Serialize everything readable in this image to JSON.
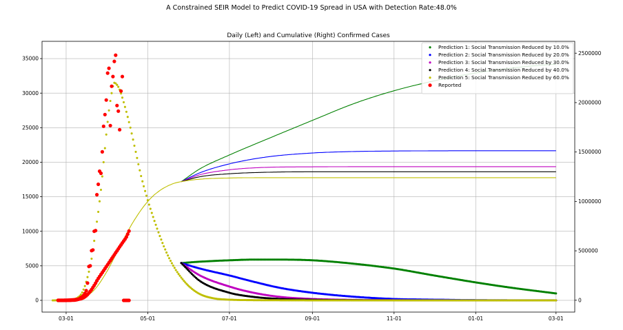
{
  "figure": {
    "suptitle": "A Constrained SEIR Model to Predict COVID-19 Spread in USA with Detection Rate:48.0%"
  },
  "chart_data": {
    "type": "line",
    "title": "Daily (Left) and Cumulative (Right) Confirmed Cases",
    "x_tick_labels": [
      "03-01",
      "05-01",
      "07-01",
      "09-01",
      "11-01",
      "01-01",
      "03-01"
    ],
    "x_tick_days": [
      0,
      61,
      122,
      184,
      245,
      306,
      366
    ],
    "xlim_days": [
      -18,
      380
    ],
    "left_axis": {
      "ylim": [
        -1700,
        37500
      ],
      "ticks": [
        0,
        5000,
        10000,
        15000,
        20000,
        25000,
        30000,
        35000
      ]
    },
    "right_axis": {
      "ylim": [
        -120000,
        2620000
      ],
      "ticks": [
        0,
        500000,
        1000000,
        1500000,
        2000000,
        2500000
      ]
    },
    "grid": true,
    "legend_position": "top-right",
    "legend": [
      {
        "label": "Prediction 1: Social Transmission Reduced by 10.0%",
        "color": "#008000"
      },
      {
        "label": "Prediction 2: Social Transmission Reduced by 20.0%",
        "color": "#0000ff"
      },
      {
        "label": "Prediction 3: Social Transmission Reduced by 30.0%",
        "color": "#bf00bf"
      },
      {
        "label": "Prediction 4: Social Transmission Reduced by 40.0%",
        "color": "#000000"
      },
      {
        "label": "Prediction 5: Social Transmission Reduced by 60.0%",
        "color": "#bfbf00"
      },
      {
        "label": "Reported",
        "color": "#ff0000"
      }
    ],
    "reported_daily": {
      "x_days": [
        -6,
        -5,
        -4,
        -3,
        -2,
        -1,
        0,
        1,
        2,
        3,
        4,
        5,
        6,
        7,
        8,
        9,
        10,
        11,
        12,
        13,
        14,
        15,
        16,
        17,
        18,
        19,
        20,
        21,
        22,
        23,
        24,
        25,
        26,
        27,
        28,
        29,
        30,
        31,
        32,
        33,
        34,
        35,
        36,
        37,
        38,
        39,
        40,
        41,
        42,
        43,
        44,
        45,
        46,
        47
      ],
      "y": [
        0,
        0,
        0,
        0,
        0,
        0,
        0,
        5,
        5,
        10,
        20,
        30,
        40,
        60,
        100,
        150,
        250,
        400,
        500,
        700,
        1000,
        1400,
        2500,
        4900,
        5000,
        7200,
        7300,
        10000,
        10100,
        15300,
        16800,
        18700,
        18400,
        21500,
        25200,
        26900,
        29000,
        32900,
        33600,
        25300,
        31000,
        32400,
        34600,
        35500,
        28200,
        27400,
        24700,
        30300,
        32400,
        0,
        0,
        0,
        0,
        0
      ]
    },
    "reported_cumulative": {
      "x_days": [
        -6,
        -3,
        0,
        3,
        6,
        9,
        12,
        15,
        18,
        21,
        24,
        27,
        30,
        33,
        36,
        39,
        42,
        45,
        47
      ],
      "y": [
        0,
        100,
        500,
        2000,
        5000,
        10000,
        20000,
        45000,
        90000,
        150000,
        220000,
        280000,
        340000,
        400000,
        460000,
        520000,
        580000,
        640000,
        700000
      ]
    },
    "series": [
      {
        "name": "Prediction 1: Social Transmission Reduced by 10.0%",
        "color": "#008000",
        "daily": {
          "x_days": [
            86,
            100,
            122,
            140,
            160,
            184,
            210,
            245,
            275,
            306,
            330,
            366
          ],
          "y": [
            5400,
            5600,
            5800,
            5900,
            5900,
            5800,
            5400,
            4600,
            3600,
            2600,
            1900,
            1000
          ]
        },
        "cumulative": {
          "x_days": [
            86,
            100,
            122,
            150,
            184,
            215,
            245,
            275,
            306,
            340,
            366
          ],
          "y": [
            1200000,
            1330000,
            1470000,
            1630000,
            1820000,
            1990000,
            2120000,
            2220000,
            2300000,
            2360000,
            2390000
          ]
        }
      },
      {
        "name": "Prediction 2: Social Transmission Reduced by 20.0%",
        "color": "#0000ff",
        "daily": {
          "x_days": [
            86,
            100,
            122,
            140,
            160,
            184,
            210,
            245,
            275,
            306,
            366
          ],
          "y": [
            5400,
            4600,
            3600,
            2700,
            1800,
            1100,
            600,
            200,
            100,
            30,
            0
          ]
        },
        "cumulative": {
          "x_days": [
            86,
            100,
            122,
            150,
            184,
            215,
            245,
            275,
            306,
            366
          ],
          "y": [
            1200000,
            1290000,
            1380000,
            1450000,
            1490000,
            1505000,
            1510000,
            1512000,
            1513000,
            1513000
          ]
        }
      },
      {
        "name": "Prediction 3: Social Transmission Reduced by 30.0%",
        "color": "#bf00bf",
        "daily": {
          "x_days": [
            86,
            100,
            122,
            140,
            160,
            184,
            210,
            245,
            306,
            366
          ],
          "y": [
            5400,
            3600,
            2000,
            1100,
            500,
            200,
            80,
            20,
            0,
            0
          ]
        },
        "cumulative": {
          "x_days": [
            86,
            100,
            122,
            150,
            184,
            245,
            306,
            366
          ],
          "y": [
            1200000,
            1270000,
            1320000,
            1345000,
            1350000,
            1352000,
            1352000,
            1352000
          ]
        }
      },
      {
        "name": "Prediction 4: Social Transmission Reduced by 40.0%",
        "color": "#000000",
        "daily": {
          "x_days": [
            86,
            100,
            122,
            140,
            160,
            184,
            245,
            306,
            366
          ],
          "y": [
            5400,
            2800,
            1100,
            500,
            200,
            80,
            10,
            0,
            0
          ]
        },
        "cumulative": {
          "x_days": [
            86,
            100,
            122,
            150,
            184,
            245,
            306,
            366
          ],
          "y": [
            1200000,
            1250000,
            1280000,
            1295000,
            1300000,
            1300000,
            1300000,
            1300000
          ]
        }
      },
      {
        "name": "Prediction 5: Social Transmission Reduced by 60.0%",
        "color": "#bfbf00",
        "daily": {
          "x_days": [
            -10,
            0,
            10,
            18,
            22,
            26,
            28,
            30,
            32,
            34,
            36,
            38,
            40,
            44,
            48,
            52,
            56,
            61,
            66,
            71,
            76,
            81,
            86,
            92,
            100,
            110,
            122,
            140,
            160,
            184,
            245,
            306,
            366
          ],
          "y": [
            0,
            20,
            600,
            5000,
            10000,
            16000,
            20000,
            24000,
            27500,
            30000,
            31500,
            31200,
            30500,
            28000,
            25000,
            21500,
            18000,
            14500,
            11500,
            8800,
            6500,
            4700,
            3300,
            2000,
            900,
            300,
            100,
            30,
            10,
            0,
            0,
            0,
            0
          ]
        },
        "cumulative": {
          "x_days": [
            0,
            10,
            20,
            30,
            40,
            50,
            61,
            70,
            80,
            86,
            100,
            122,
            150,
            184,
            245,
            306,
            366
          ],
          "y": [
            5000,
            20000,
            90000,
            280000,
            540000,
            790000,
            1000000,
            1110000,
            1180000,
            1200000,
            1225000,
            1237000,
            1240000,
            1240000,
            1240000,
            1240000,
            1240000
          ]
        }
      }
    ]
  }
}
